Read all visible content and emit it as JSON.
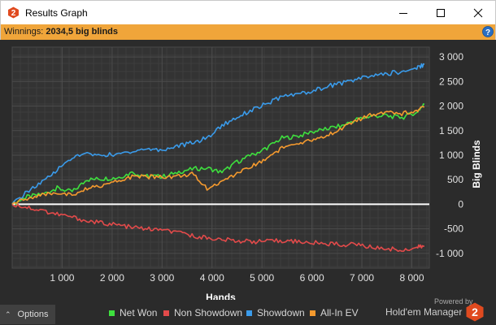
{
  "window": {
    "title": "Results Graph",
    "minimize_glyph": "minimize-icon",
    "maximize_glyph": "maximize-icon",
    "close_glyph": "close-icon"
  },
  "info": {
    "prefix": "Winnings: ",
    "value": "2034,5 big blinds"
  },
  "bottom": {
    "options_label": "Options",
    "powered_by": "Powered by",
    "brand_name": "Hold'em Manager",
    "brand_number": "2"
  },
  "colors": {
    "net_won": "#3ee03e",
    "non_showdown": "#e24a4a",
    "showdown": "#3a9bea",
    "all_in_ev": "#f59a2e",
    "accent": "#f0a53a"
  },
  "chart_data": {
    "type": "line",
    "xlabel": "Hands",
    "ylabel": "Big Blinds",
    "xlim": [
      0,
      8350
    ],
    "ylim": [
      -1300,
      3200
    ],
    "x_ticks": [
      1000,
      2000,
      3000,
      4000,
      5000,
      6000,
      7000,
      8000
    ],
    "x_tick_labels": [
      "1 000",
      "2 000",
      "3 000",
      "4 000",
      "5 000",
      "6 000",
      "7 000",
      "8 000"
    ],
    "y_ticks": [
      3000,
      2500,
      2000,
      1500,
      1000,
      500,
      0,
      -500,
      -1000
    ],
    "y_tick_labels": [
      "3 000",
      "2 500",
      "2 000",
      "1 500",
      "1 000",
      "500",
      "0",
      "-500",
      "-1 000"
    ],
    "grid": true,
    "legend_position": "bottom",
    "series": [
      {
        "name": "Net Won",
        "color": "#3ee03e",
        "x": [
          0,
          300,
          600,
          900,
          1200,
          1500,
          1800,
          2100,
          2400,
          2700,
          3000,
          3300,
          3600,
          3900,
          4200,
          4500,
          4800,
          5100,
          5400,
          5700,
          6000,
          6300,
          6600,
          6900,
          7200,
          7500,
          7800,
          8100,
          8250
        ],
        "y": [
          0,
          150,
          200,
          330,
          250,
          500,
          520,
          540,
          640,
          580,
          560,
          650,
          720,
          740,
          650,
          860,
          1000,
          1150,
          1350,
          1380,
          1470,
          1540,
          1600,
          1730,
          1800,
          1800,
          1760,
          1880,
          2034
        ]
      },
      {
        "name": "Non Showdown",
        "color": "#e24a4a",
        "x": [
          0,
          300,
          600,
          900,
          1200,
          1500,
          1800,
          2100,
          2400,
          2700,
          3000,
          3300,
          3600,
          3900,
          4200,
          4500,
          4800,
          5100,
          5400,
          5700,
          6000,
          6300,
          6600,
          6900,
          7200,
          7500,
          7800,
          8100,
          8250
        ],
        "y": [
          0,
          -60,
          -130,
          -200,
          -260,
          -340,
          -380,
          -420,
          -470,
          -500,
          -530,
          -580,
          -640,
          -680,
          -720,
          -740,
          -760,
          -760,
          -740,
          -760,
          -780,
          -800,
          -820,
          -820,
          -880,
          -900,
          -930,
          -880,
          -850
        ]
      },
      {
        "name": "Showdown",
        "color": "#3a9bea",
        "x": [
          0,
          300,
          600,
          900,
          1200,
          1500,
          1800,
          2100,
          2400,
          2700,
          3000,
          3300,
          3600,
          3900,
          4200,
          4500,
          4800,
          5100,
          5400,
          5700,
          6000,
          6300,
          6600,
          6900,
          7200,
          7500,
          7800,
          8100,
          8250
        ],
        "y": [
          0,
          250,
          450,
          700,
          950,
          1020,
          1000,
          1020,
          1080,
          1130,
          1100,
          1180,
          1250,
          1350,
          1600,
          1780,
          1920,
          2050,
          2180,
          2250,
          2300,
          2400,
          2470,
          2540,
          2620,
          2660,
          2700,
          2780,
          2850
        ]
      },
      {
        "name": "All-In EV",
        "color": "#f59a2e",
        "x": [
          0,
          300,
          600,
          900,
          1200,
          1500,
          1800,
          2100,
          2400,
          2700,
          3000,
          3300,
          3600,
          3900,
          4200,
          4500,
          4800,
          5100,
          5400,
          5700,
          6000,
          6300,
          6600,
          6900,
          7200,
          7500,
          7800,
          8100,
          8250
        ],
        "y": [
          0,
          120,
          180,
          240,
          180,
          310,
          380,
          460,
          560,
          560,
          560,
          570,
          620,
          330,
          450,
          640,
          770,
          950,
          1150,
          1200,
          1300,
          1400,
          1550,
          1700,
          1820,
          1900,
          1850,
          1900,
          1980
        ]
      }
    ]
  }
}
